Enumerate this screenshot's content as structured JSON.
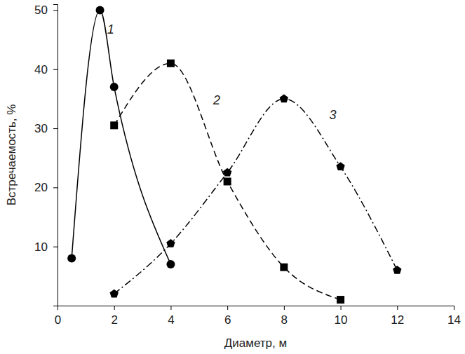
{
  "chart_data": {
    "type": "line",
    "x_label": "Диаметр, м",
    "y_label": "Встречаемость, %",
    "xlim": [
      0,
      14
    ],
    "xticks": [
      0,
      2,
      4,
      6,
      8,
      10,
      12,
      14
    ],
    "ylim": [
      0,
      51
    ],
    "yticks": [
      10,
      20,
      30,
      40,
      50
    ],
    "grid": false,
    "series": [
      {
        "name": "1",
        "color": "#000000",
        "marker": "circle",
        "line_style": "solid",
        "x": [
          0.5,
          1.5,
          2,
          4
        ],
        "values": [
          8,
          50,
          37,
          7
        ]
      },
      {
        "name": "2",
        "color": "#000000",
        "marker": "square",
        "line_style": "dashed",
        "x": [
          2,
          4,
          6,
          8,
          10
        ],
        "values": [
          30.5,
          41,
          21,
          6.5,
          1
        ]
      },
      {
        "name": "3",
        "color": "#000000",
        "marker": "pentagon",
        "line_style": "dashdot",
        "x": [
          2,
          4,
          6,
          8,
          10,
          12
        ],
        "values": [
          2,
          10.5,
          22.5,
          35,
          23.5,
          6
        ]
      }
    ],
    "annotations": [
      {
        "text": "1",
        "x": 1.75,
        "y": 46
      },
      {
        "text": "2",
        "x": 5.5,
        "y": 34
      },
      {
        "text": "3",
        "x": 9.6,
        "y": 31.5
      }
    ]
  }
}
